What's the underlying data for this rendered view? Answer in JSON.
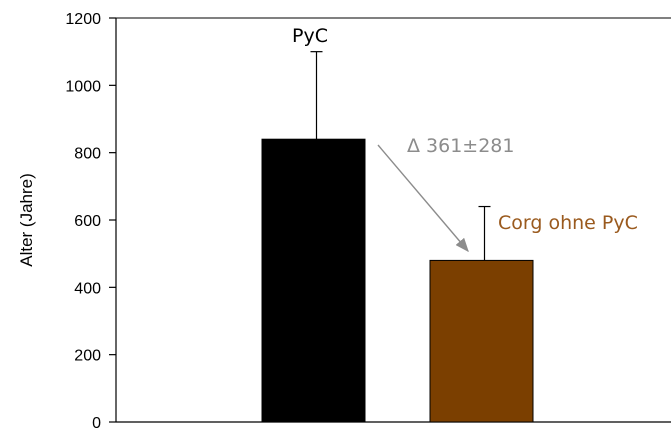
{
  "chart_data": {
    "type": "bar",
    "title": "",
    "xlabel": "",
    "ylabel": "Alter (Jahre)",
    "ylim": [
      0,
      1200
    ],
    "yticks": [
      0,
      200,
      400,
      600,
      800,
      1000,
      1200
    ],
    "grid": false,
    "categories": [
      "PyC",
      "Corg ohne PyC"
    ],
    "values": [
      840,
      480
    ],
    "error_plus": [
      260,
      160
    ],
    "colors": [
      "#000000",
      "#7b3f00"
    ],
    "label_colors": [
      "#000000",
      "#9a5a1e"
    ],
    "annotation": {
      "text": "Δ 361±281",
      "color": "#8c8c8c",
      "from": "PyC",
      "to": "Corg ohne PyC"
    }
  }
}
